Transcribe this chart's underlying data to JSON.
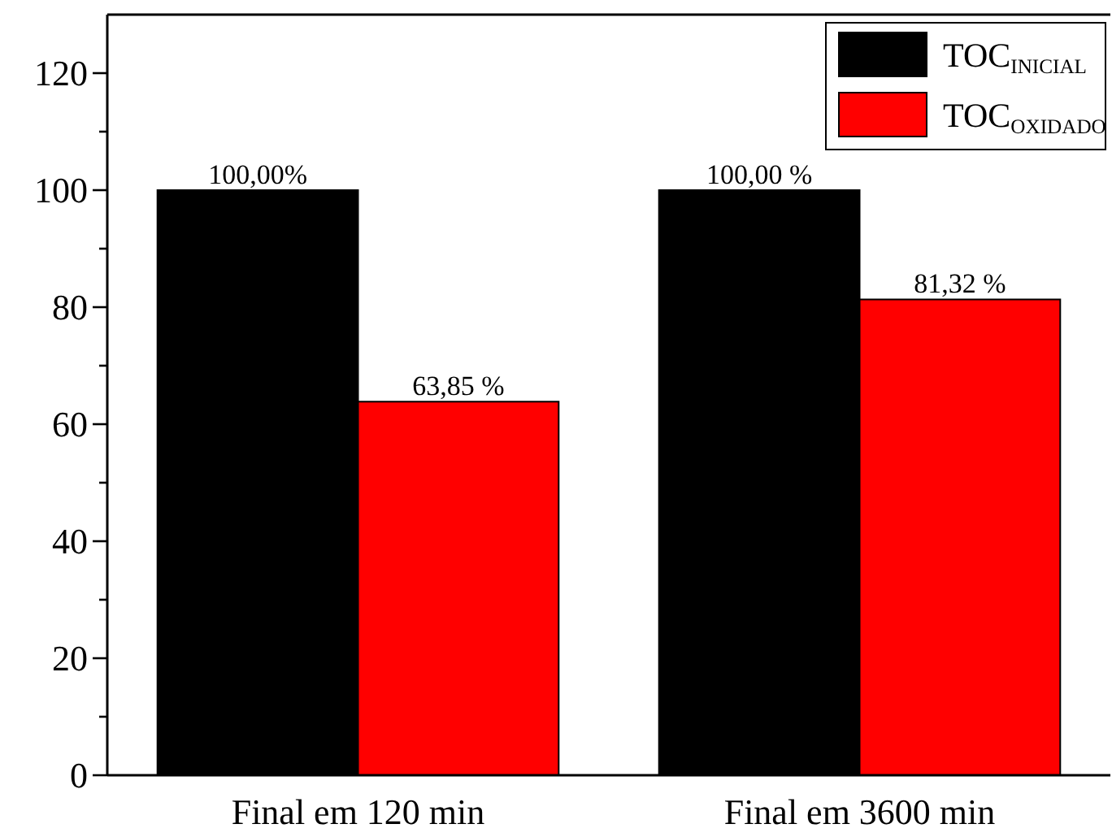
{
  "chart_data": {
    "type": "bar",
    "categories": [
      "Final em 120 min",
      "Final em 3600 min"
    ],
    "series": [
      {
        "name": "TOC$_{INICIAL}$",
        "color": "#000000",
        "values": [
          100,
          100
        ],
        "value_labels": [
          "100,00%",
          "100,00 %"
        ]
      },
      {
        "name": "TOC$_{OXIDADO}$",
        "color": "#ff0000",
        "values": [
          63.85,
          81.32
        ],
        "value_labels": [
          "63,85 %",
          "81,32 %"
        ]
      }
    ],
    "ylim": [
      0,
      130
    ],
    "yticks": [
      0,
      {
        "value": 10,
        "label": null
      },
      20,
      {
        "value": 30,
        "label": null
      },
      40,
      {
        "value": 50,
        "label": null
      },
      60,
      {
        "value": 70,
        "label": null
      },
      80,
      {
        "value": 90,
        "label": null
      },
      100,
      {
        "value": 110,
        "label": null
      },
      120
    ],
    "grid": false,
    "legend": "top right"
  }
}
